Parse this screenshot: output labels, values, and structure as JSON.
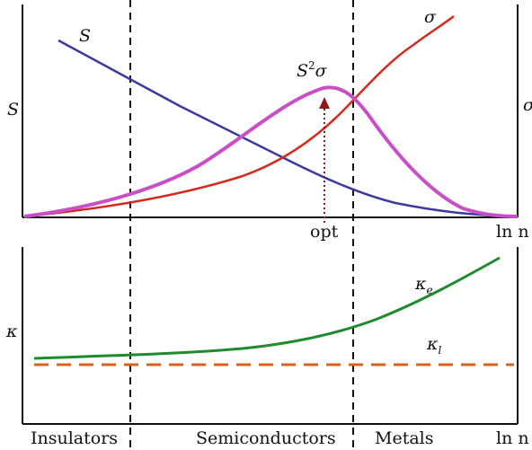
{
  "top_panel": {
    "left_axis_label": "S",
    "right_axis_label": "σ",
    "x_axis_label": "ln n",
    "curve_labels": {
      "seebeck": "S",
      "conductivity": "σ",
      "power_factor_base": "S",
      "power_factor_exp": "2",
      "power_factor_tail": "σ"
    },
    "marker_label": "opt"
  },
  "bottom_panel": {
    "left_axis_label": "κ",
    "x_axis_label": "ln n",
    "curve_labels": {
      "electronic": "κ",
      "electronic_sub": "e",
      "lattice": "κ",
      "lattice_sub": "l"
    }
  },
  "regions": [
    "Insulators",
    "Semiconductors",
    "Metals"
  ],
  "colors": {
    "seebeck": "#3a3aa0",
    "conductivity": "#d42a1e",
    "power_factor": "#c94fc7",
    "opt_arrow": "#8b1a1a",
    "electronic": "#1f8a2e",
    "lattice": "#e0601a"
  }
}
